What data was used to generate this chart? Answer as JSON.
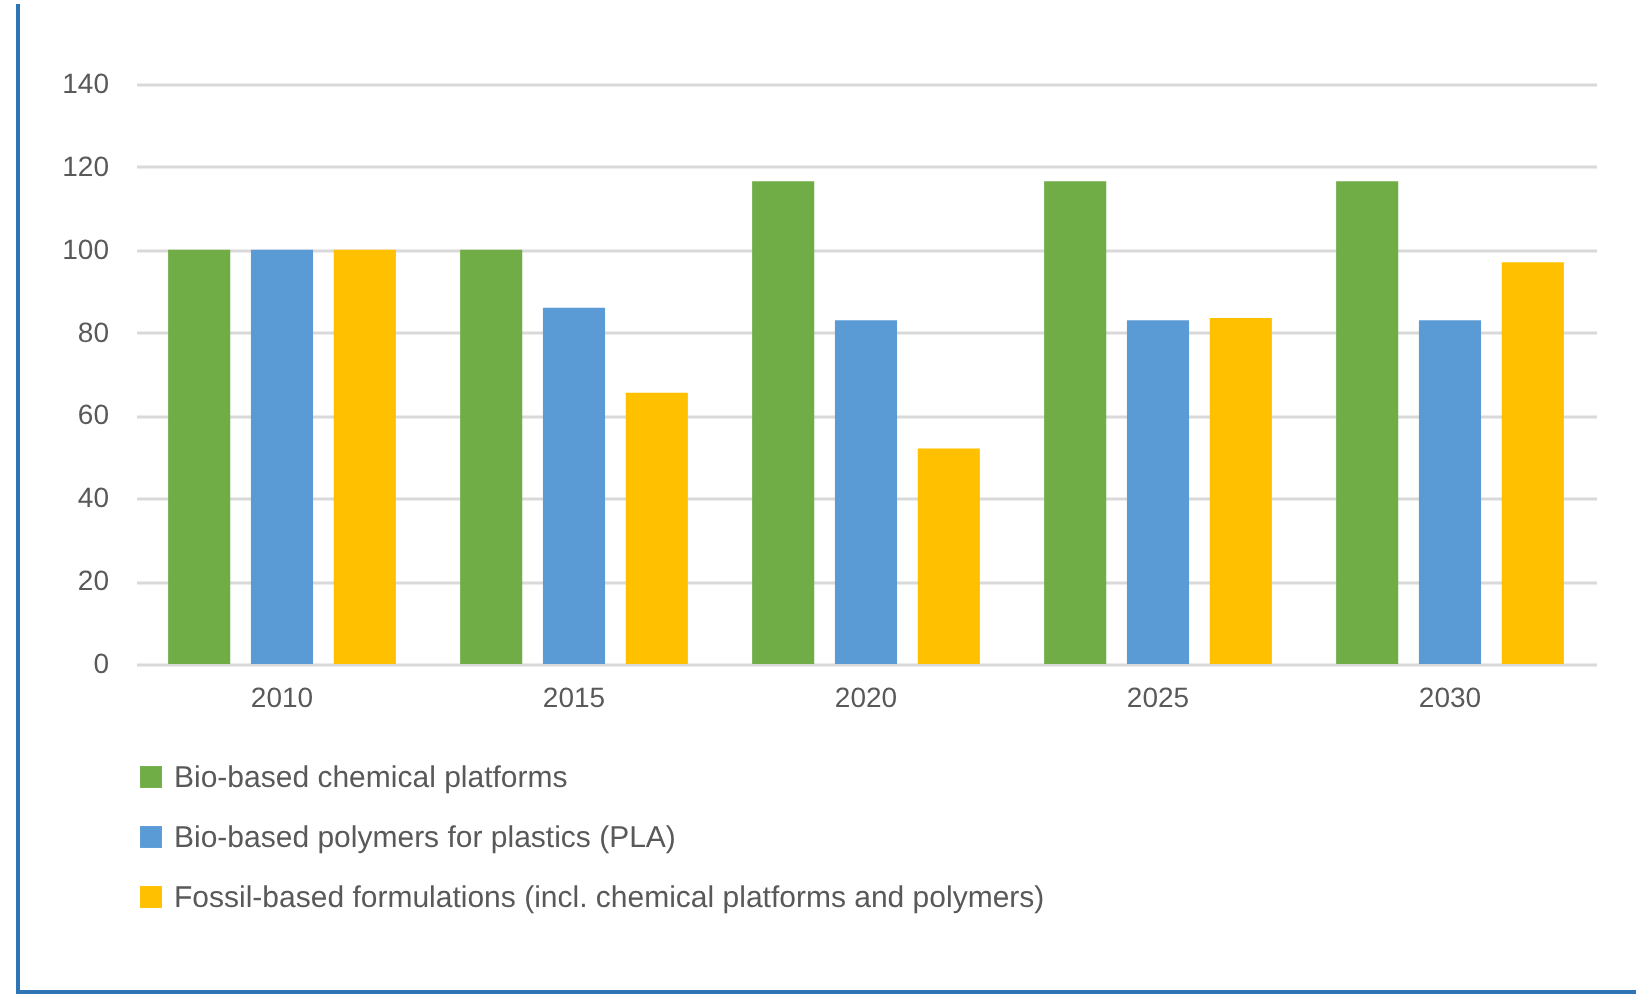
{
  "chart_data": {
    "type": "bar",
    "categories": [
      "2010",
      "2015",
      "2020",
      "2025",
      "2030"
    ],
    "series": [
      {
        "name": "Bio-based chemical platforms",
        "color": "#70ad47",
        "values": [
          100,
          100,
          116.5,
          116.5,
          116.5
        ]
      },
      {
        "name": "Bio-based polymers for plastics (PLA)",
        "color": "#5b9bd5",
        "values": [
          100,
          86,
          83,
          83,
          83
        ]
      },
      {
        "name": "Fossil-based formulations (incl. chemical platforms and polymers)",
        "color": "#ffc000",
        "values": [
          100,
          65.5,
          52,
          83.5,
          97
        ]
      }
    ],
    "ylim": [
      0,
      140
    ],
    "yticks": [
      0,
      20,
      40,
      60,
      80,
      100,
      120,
      140
    ],
    "grid": "y",
    "legend": "bottom"
  }
}
